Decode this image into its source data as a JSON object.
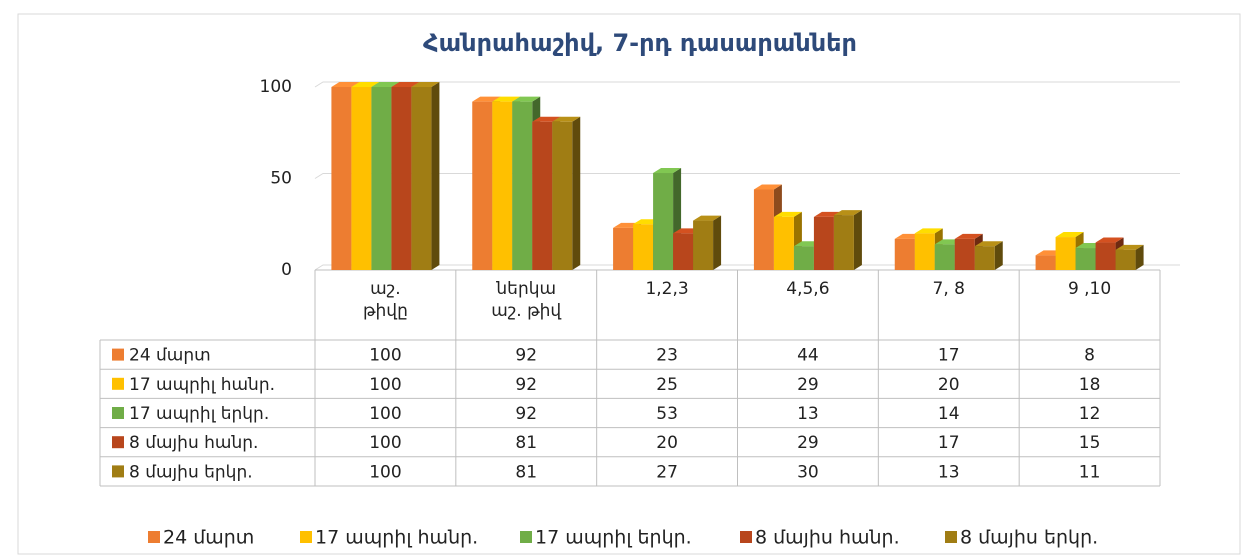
{
  "chart_data": {
    "type": "bar3d",
    "title": "Հանրահաշիվ, 7-րդ դասարաններ",
    "categories": [
      "աշ. թիվը",
      "ներկա աշ. թիվ",
      "1,2,3",
      "4,5,6",
      "7, 8",
      "9 ,10"
    ],
    "series": [
      {
        "name": "24 մարտ",
        "color": "#ed7d31",
        "values": [
          100,
          92,
          23,
          44,
          17,
          8
        ]
      },
      {
        "name": "17 ապրիլ հանր.",
        "color": "#ffc000",
        "values": [
          100,
          92,
          25,
          29,
          20,
          18
        ]
      },
      {
        "name": "17 ապրիլ երկր.",
        "color": "#70ad47",
        "values": [
          100,
          92,
          53,
          13,
          14,
          12
        ]
      },
      {
        "name": "8 մայիս հանր.",
        "color": "#b8461c",
        "values": [
          100,
          81,
          20,
          29,
          17,
          15
        ]
      },
      {
        "name": "8 մայիս երկր.",
        "color": "#a07d14",
        "values": [
          100,
          81,
          27,
          30,
          13,
          11
        ]
      }
    ],
    "ylim": [
      0,
      100
    ],
    "yticks": [
      0,
      50,
      100
    ],
    "grid": true,
    "legend": "bottom"
  }
}
